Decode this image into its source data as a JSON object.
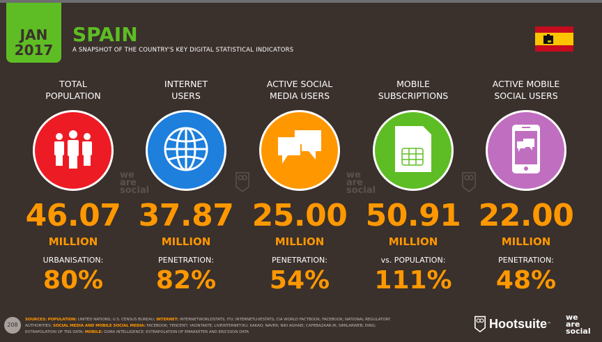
{
  "header": {
    "month": "JAN",
    "year": "2017",
    "title": "SPAIN",
    "subtitle": "A SNAPSHOT OF THE COUNTRY'S KEY DIGITAL STATISTICAL INDICATORS",
    "flag": "spain-flag"
  },
  "colors": {
    "background": "#3a302c",
    "accent_green": "#5ebd24",
    "value_orange": "#ff9800"
  },
  "stats": [
    {
      "label_1": "TOTAL",
      "label_2": "POPULATION",
      "icon": "people-icon",
      "color": "#ed1c24",
      "value": "46.07",
      "unit": "MILLION",
      "sub_label": "URBANISATION:",
      "sub_value": "80%"
    },
    {
      "label_1": "INTERNET",
      "label_2": "USERS",
      "icon": "globe-icon",
      "color": "#1e7fdc",
      "value": "37.87",
      "unit": "MILLION",
      "sub_label": "PENETRATION:",
      "sub_value": "82%"
    },
    {
      "label_1": "ACTIVE SOCIAL",
      "label_2": "MEDIA USERS",
      "icon": "speech-bubbles-icon",
      "color": "#ff9800",
      "value": "25.00",
      "unit": "MILLION",
      "sub_label": "PENETRATION:",
      "sub_value": "54%"
    },
    {
      "label_1": "MOBILE",
      "label_2": "SUBSCRIPTIONS",
      "icon": "sim-card-icon",
      "color": "#5ebd24",
      "value": "50.91",
      "unit": "MILLION",
      "sub_label": "vs. POPULATION:",
      "sub_value": "111%"
    },
    {
      "label_1": "ACTIVE MOBILE",
      "label_2": "SOCIAL USERS",
      "icon": "mobile-phone-icon",
      "color": "#c06fc0",
      "value": "22.00",
      "unit": "MILLION",
      "sub_label": "PENETRATION:",
      "sub_value": "48%"
    }
  ],
  "watermark": {
    "l1": "we",
    "l2": "are",
    "l3": "social"
  },
  "footer": {
    "page": "208",
    "sources_label": "SOURCES:",
    "pop_label": "POPULATION:",
    "pop_text": "UNITED NATIONS; U.S. CENSUS BUREAU;",
    "int_label": "INTERNET:",
    "int_text": "INTERNETWORLDSTATS; ITU; INTERNETLIVESTATS; CIA WORLD FACTBOOK; FACEBOOK; NATIONAL REGULATORY AUTHORITIES;",
    "sm_label": "SOCIAL MEDIA AND MOBILE SOCIAL MEDIA:",
    "sm_text": "FACEBOOK; TENCENT; VKONTAKTE; LIVEINTERNET.RU; KAKAO; NAVER; NIKI AGHAEI; CAFEBAZAAR.IR; SIMILARWEB; DING; EXTRAPOLATION OF TNS DATA;",
    "mob_label": "MOBILE:",
    "mob_text": "GSMA INTELLIGENCE; EXTRAPOLATION OF EMARKETER AND ERICSSON DATA",
    "hootsuite": "Hootsuite",
    "tm": "™"
  }
}
